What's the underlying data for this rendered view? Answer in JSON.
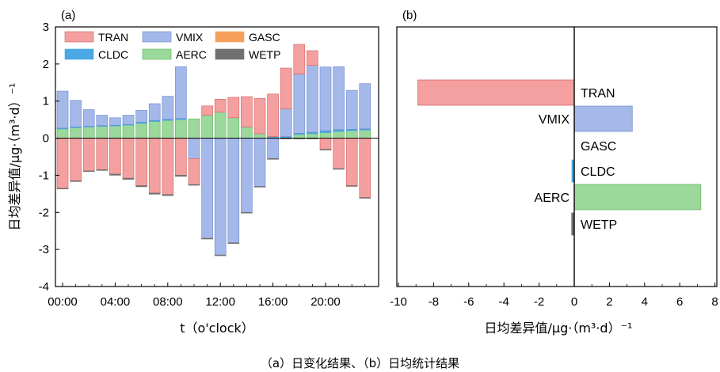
{
  "caption": "（a）日变化结果、（b）日均统计结果",
  "colors": {
    "TRAN": "#f4a0a0",
    "VMIX": "#a4b9ea",
    "GASC": "#f5a05a",
    "CLDC": "#4aa8e4",
    "AERC": "#9bd89b",
    "WETP": "#707070",
    "TRAN_edge": "#d06060",
    "VMIX_edge": "#6a86c8",
    "AERC_edge": "#5fb05f"
  },
  "chart_data": [
    {
      "type": "bar",
      "stacked": true,
      "panel_label": "(a)",
      "xlabel": "t（o'clock）",
      "ylabel": "日均差异值/μg·（m³·d）⁻¹",
      "ylim": [
        -4,
        3
      ],
      "yticks": [
        3,
        2,
        1,
        0,
        -1,
        -2,
        -3,
        -4
      ],
      "xticks": [
        "00:00",
        "04:00",
        "08:00",
        "12:00",
        "16:00",
        "20:00"
      ],
      "legend_position": "top-left",
      "legend": [
        "TRAN",
        "VMIX",
        "GASC",
        "CLDC",
        "AERC",
        "WETP"
      ],
      "categories": [
        0,
        1,
        2,
        3,
        4,
        5,
        6,
        7,
        8,
        9,
        10,
        11,
        12,
        13,
        14,
        15,
        16,
        17,
        18,
        19,
        20,
        21,
        22,
        23
      ],
      "series": [
        {
          "name": "AERC",
          "values": [
            0.25,
            0.28,
            0.3,
            0.32,
            0.33,
            0.35,
            0.4,
            0.45,
            0.48,
            0.5,
            0.52,
            0.62,
            0.7,
            0.55,
            0.3,
            0.12,
            0.02,
            0.02,
            0.1,
            0.12,
            0.15,
            0.18,
            0.2,
            0.22
          ]
        },
        {
          "name": "CLDC",
          "values": [
            0.02,
            0.02,
            0.02,
            0.02,
            0.02,
            0.02,
            0.03,
            0.03,
            0.03,
            0.03,
            0.0,
            0.0,
            0.0,
            0.0,
            0.0,
            0.0,
            0.02,
            0.02,
            0.03,
            0.04,
            0.05,
            0.05,
            0.04,
            0.03
          ]
        },
        {
          "name": "VMIX",
          "values": [
            1.0,
            0.72,
            0.45,
            0.28,
            0.2,
            0.25,
            0.32,
            0.45,
            0.62,
            1.4,
            -0.55,
            -2.7,
            -3.15,
            -2.82,
            -2.0,
            -1.3,
            -0.55,
            0.75,
            1.6,
            1.8,
            1.72,
            1.7,
            1.05,
            1.22
          ]
        },
        {
          "name": "TRAN",
          "values": [
            -1.35,
            -1.15,
            -0.88,
            -0.85,
            -0.97,
            -1.08,
            -1.28,
            -1.48,
            -1.52,
            -1.0,
            -0.7,
            0.25,
            0.35,
            0.55,
            0.82,
            0.95,
            1.15,
            1.1,
            0.8,
            0.4,
            -0.3,
            -0.82,
            -1.28,
            -1.6
          ]
        },
        {
          "name": "GASC",
          "values": [
            0,
            0,
            0,
            0,
            0,
            0,
            0,
            0,
            0,
            0,
            0,
            0,
            0,
            0,
            0,
            0,
            0,
            0,
            0,
            0,
            0,
            0,
            0,
            0
          ]
        },
        {
          "name": "WETP",
          "values": [
            -0.02,
            -0.02,
            -0.02,
            -0.02,
            -0.03,
            -0.03,
            -0.03,
            -0.03,
            -0.03,
            -0.03,
            -0.02,
            -0.02,
            -0.02,
            -0.02,
            -0.02,
            -0.02,
            -0.02,
            -0.02,
            -0.02,
            -0.02,
            -0.02,
            -0.02,
            -0.02,
            -0.02
          ]
        }
      ]
    },
    {
      "type": "bar",
      "orientation": "horizontal",
      "panel_label": "(b)",
      "xlabel": "日均差异值/μg·（m³·d）⁻¹",
      "xlim": [
        -10,
        8
      ],
      "xticks": [
        -10,
        -8,
        -6,
        -4,
        -2,
        0,
        2,
        4,
        6,
        8
      ],
      "categories": [
        "TRAN",
        "VMIX",
        "GASC",
        "CLDC",
        "AERC",
        "WETP"
      ],
      "values": [
        -8.9,
        3.3,
        0.0,
        -0.12,
        7.2,
        -0.15
      ]
    }
  ]
}
